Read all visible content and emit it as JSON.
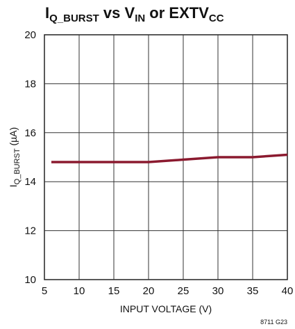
{
  "chart_data": {
    "type": "line",
    "title": {
      "parts": [
        {
          "text": "I",
          "style": "normal"
        },
        {
          "text": "Q_BURST",
          "style": "sub"
        },
        {
          "text": " vs V",
          "style": "normal"
        },
        {
          "text": "IN",
          "style": "sub"
        },
        {
          "text": " or EXTV",
          "style": "normal"
        },
        {
          "text": "CC",
          "style": "sub"
        }
      ]
    },
    "xlabel": "INPUT VOLTAGE (V)",
    "ylabel": {
      "main": "I",
      "sub": "Q_BURST",
      "unit": " (µA)"
    },
    "xlim": [
      5,
      40
    ],
    "ylim": [
      10,
      20
    ],
    "xticks": [
      5,
      10,
      15,
      20,
      25,
      30,
      35,
      40
    ],
    "yticks": [
      10,
      12,
      14,
      16,
      18,
      20
    ],
    "grid": true,
    "series": [
      {
        "color": "#8b1a2f",
        "x": [
          6,
          10,
          15,
          20,
          25,
          30,
          35,
          40
        ],
        "y": [
          14.8,
          14.8,
          14.8,
          14.8,
          14.9,
          15.0,
          15.0,
          15.1
        ]
      }
    ],
    "figure_id": "8711 G23"
  }
}
